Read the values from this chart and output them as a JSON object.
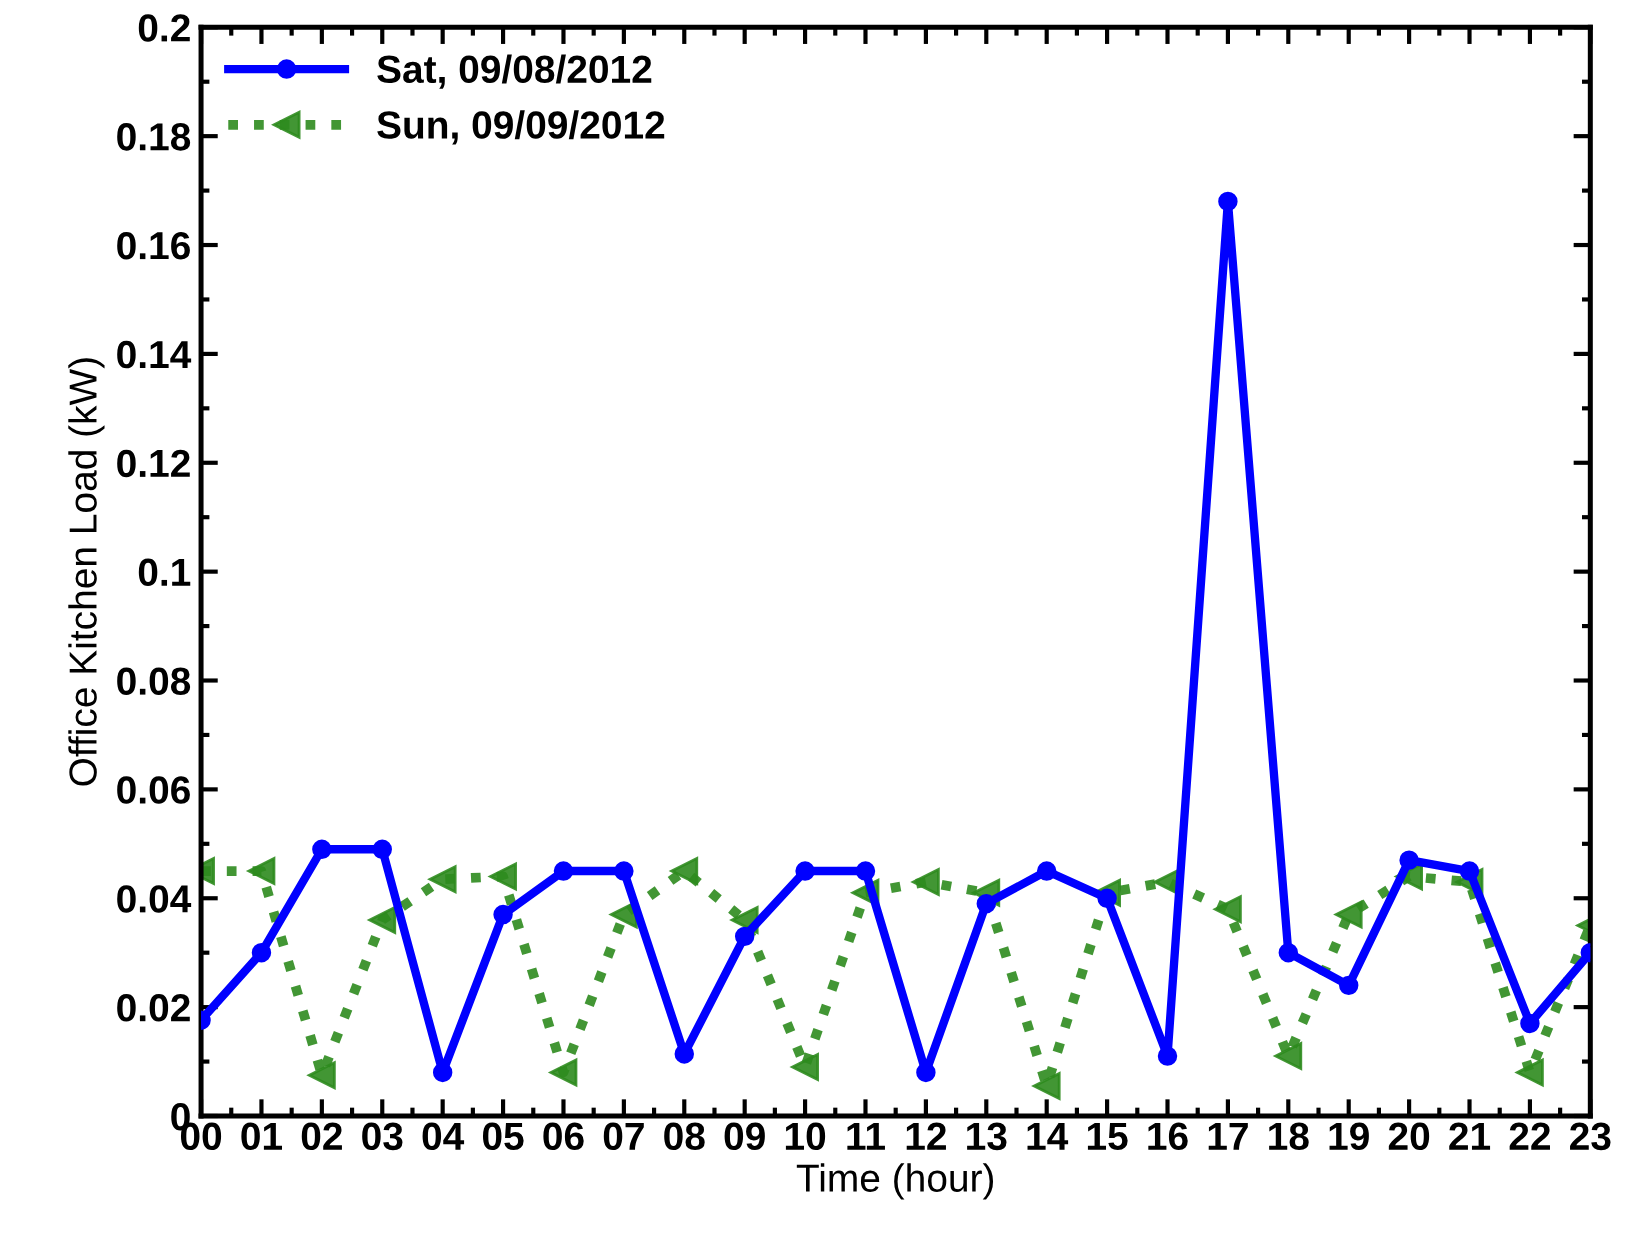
{
  "chart_data": {
    "type": "line",
    "xlabel": "Time (hour)",
    "ylabel": "Office Kitchen Load (kW)",
    "categories": [
      "00",
      "01",
      "02",
      "03",
      "04",
      "05",
      "06",
      "07",
      "08",
      "09",
      "10",
      "11",
      "12",
      "13",
      "14",
      "15",
      "16",
      "17",
      "18",
      "19",
      "20",
      "21",
      "22",
      "23"
    ],
    "series": [
      {
        "name": "Sat, 09/08/2012",
        "color": "#0000ff",
        "marker": "circle",
        "line_style": "solid",
        "values": [
          0.0176,
          0.03,
          0.049,
          0.049,
          0.008,
          0.037,
          0.045,
          0.045,
          0.0114,
          0.033,
          0.045,
          0.045,
          0.008,
          0.039,
          0.045,
          0.04,
          0.011,
          0.168,
          0.03,
          0.024,
          0.047,
          0.045,
          0.017,
          0.03
        ]
      },
      {
        "name": "Sun, 09/09/2012",
        "color": "#2e8b1e",
        "marker": "triangle",
        "line_style": "dotted",
        "values": [
          0.045,
          0.045,
          0.0075,
          0.036,
          0.0435,
          0.044,
          0.008,
          0.037,
          0.045,
          0.036,
          0.009,
          0.041,
          0.043,
          0.041,
          0.0055,
          0.041,
          0.043,
          0.038,
          0.011,
          0.037,
          0.044,
          0.043,
          0.008,
          0.035
        ]
      }
    ],
    "ylim": [
      0,
      0.2
    ],
    "yticks": [
      0,
      0.02,
      0.04,
      0.06,
      0.08,
      0.1,
      0.12,
      0.14,
      0.16,
      0.18,
      0.2
    ],
    "grid": false,
    "legend": "top left"
  }
}
